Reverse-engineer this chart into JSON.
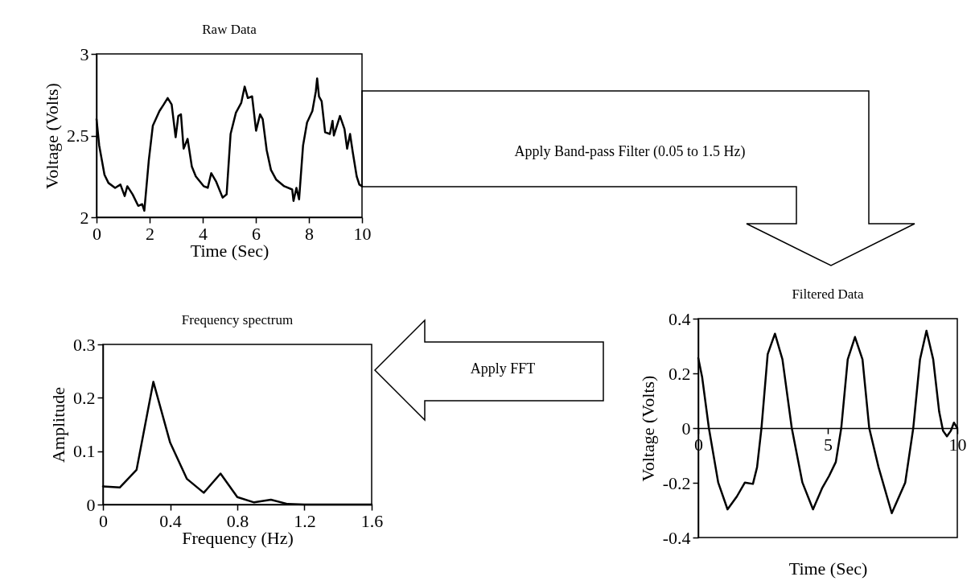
{
  "chart_data": [
    {
      "type": "line",
      "title": "Raw Data",
      "xlabel": "Time (Sec)",
      "ylabel": "Voltage (Volts)",
      "xlim": [
        0,
        10
      ],
      "xticks": [
        0,
        2,
        4,
        6,
        8,
        10
      ],
      "ylim": [
        2,
        3
      ],
      "yticks": [
        2,
        2.5,
        3
      ],
      "grid": false,
      "legend": false,
      "line_style": "solid",
      "annotations": [
        "Apply Band-pass Filter (0.05 to 1.5 Hz)"
      ],
      "x": [
        0,
        0.1,
        0.3,
        0.45,
        0.7,
        0.9,
        1.06,
        1.16,
        1.36,
        1.57,
        1.72,
        1.8,
        1.97,
        2.12,
        2.37,
        2.53,
        2.68,
        2.83,
        2.98,
        3.08,
        3.18,
        3.28,
        3.43,
        3.59,
        3.74,
        4.04,
        4.19,
        4.32,
        4.5,
        4.75,
        4.9,
        5.05,
        5.25,
        5.45,
        5.58,
        5.7,
        5.86,
        6.01,
        6.16,
        6.26,
        6.41,
        6.57,
        6.77,
        7.07,
        7.37,
        7.42,
        7.53,
        7.63,
        7.78,
        7.93,
        8.13,
        8.26,
        8.31,
        8.38,
        8.48,
        8.61,
        8.79,
        8.89,
        8.94,
        9.17,
        9.34,
        9.44,
        9.55,
        9.65,
        9.8,
        9.9,
        10
      ],
      "series": [
        {
          "color": "#000000",
          "values": [
            2.6,
            2.44,
            2.26,
            2.21,
            2.18,
            2.2,
            2.13,
            2.19,
            2.14,
            2.07,
            2.08,
            2.04,
            2.35,
            2.56,
            2.65,
            2.69,
            2.73,
            2.69,
            2.49,
            2.62,
            2.63,
            2.42,
            2.48,
            2.31,
            2.25,
            2.19,
            2.18,
            2.27,
            2.22,
            2.12,
            2.14,
            2.51,
            2.64,
            2.7,
            2.8,
            2.73,
            2.74,
            2.53,
            2.63,
            2.6,
            2.41,
            2.29,
            2.23,
            2.19,
            2.17,
            2.1,
            2.18,
            2.11,
            2.44,
            2.58,
            2.65,
            2.77,
            2.85,
            2.74,
            2.71,
            2.52,
            2.51,
            2.59,
            2.5,
            2.62,
            2.54,
            2.42,
            2.51,
            2.4,
            2.25,
            2.2,
            2.19
          ]
        }
      ]
    },
    {
      "type": "line",
      "title": "Frequency spectrum",
      "xlabel": "Frequency (Hz)",
      "ylabel": "Amplitude",
      "xlim": [
        0,
        1.6
      ],
      "xticks": [
        0,
        0.4,
        0.8,
        1.2,
        1.6
      ],
      "ylim": [
        0,
        0.3
      ],
      "yticks": [
        0,
        0.1,
        0.2,
        0.3
      ],
      "grid": false,
      "legend": false,
      "line_style": "solid",
      "annotations": [
        "Apply FFT"
      ],
      "x": [
        0,
        0.1,
        0.2,
        0.3,
        0.4,
        0.5,
        0.6,
        0.7,
        0.8,
        0.9,
        1.0,
        1.1,
        1.2,
        1.3,
        1.4,
        1.5,
        1.6
      ],
      "series": [
        {
          "color": "#000000",
          "values": [
            0.034,
            0.032,
            0.065,
            0.23,
            0.116,
            0.048,
            0.022,
            0.058,
            0.014,
            0.004,
            0.009,
            0.001,
            0,
            0,
            0,
            0,
            0
          ]
        }
      ]
    },
    {
      "type": "line",
      "title": "Filtered Data",
      "xlabel": "Time (Sec)",
      "ylabel": "Voltage (Volts)",
      "xlim": [
        0,
        10
      ],
      "xticks": [
        0,
        5,
        10
      ],
      "ylim": [
        -0.4,
        0.4
      ],
      "yticks": [
        {
          "value": -0.4,
          "label": "-0.4"
        },
        {
          "value": -0.2,
          "label": "-0.2"
        },
        0,
        0.2,
        0.4
      ],
      "grid": false,
      "legend": false,
      "line_style": "solid",
      "x": [
        0,
        0.15,
        0.41,
        0.77,
        1.13,
        1.49,
        1.8,
        2.11,
        2.27,
        2.44,
        2.68,
        2.96,
        3.25,
        3.61,
        4.02,
        4.43,
        4.79,
        5.05,
        5.31,
        5.52,
        5.77,
        6.05,
        6.34,
        6.6,
        6.96,
        7.47,
        7.99,
        8.3,
        8.56,
        8.81,
        9.07,
        9.3,
        9.45,
        9.6,
        9.75,
        9.87,
        10
      ],
      "series": [
        {
          "color": "#000000",
          "values": [
            0.256,
            0.186,
            0,
            -0.199,
            -0.297,
            -0.25,
            -0.199,
            -0.204,
            -0.143,
            0,
            0.27,
            0.345,
            0.251,
            0,
            -0.199,
            -0.297,
            -0.218,
            -0.175,
            -0.124,
            0,
            0.251,
            0.333,
            0.251,
            0,
            -0.143,
            -0.311,
            -0.199,
            0,
            0.251,
            0.356,
            0.251,
            0.06,
            -0.01,
            -0.03,
            -0.01,
            0.02,
            0
          ]
        }
      ]
    }
  ]
}
